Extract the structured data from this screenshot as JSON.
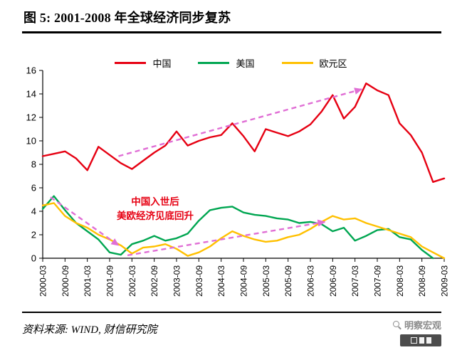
{
  "chart_data": {
    "type": "line",
    "title": "图 5:  2001-2008 年全球经济同步复苏",
    "xlabel": "",
    "ylabel": "",
    "ylim": [
      0,
      16
    ],
    "y_ticks": [
      0,
      2,
      4,
      6,
      8,
      10,
      12,
      14,
      16
    ],
    "x_tick_step": 2,
    "grid": false,
    "legend_position": "top",
    "x": [
      "2000-03",
      "2000-06",
      "2000-09",
      "2000-12",
      "2001-03",
      "2001-06",
      "2001-09",
      "2001-12",
      "2002-03",
      "2002-06",
      "2002-09",
      "2002-12",
      "2003-03",
      "2003-06",
      "2003-09",
      "2003-12",
      "2004-03",
      "2004-06",
      "2004-09",
      "2004-12",
      "2005-03",
      "2005-06",
      "2005-09",
      "2005-12",
      "2006-03",
      "2006-06",
      "2006-09",
      "2006-12",
      "2007-03",
      "2007-06",
      "2007-09",
      "2007-12",
      "2008-03",
      "2008-06",
      "2008-09",
      "2008-12",
      "2009-03"
    ],
    "series": [
      {
        "name": "中国",
        "color": "#e60012",
        "values": [
          8.7,
          8.9,
          9.1,
          8.5,
          7.5,
          9.5,
          8.8,
          8.1,
          7.6,
          8.3,
          9.0,
          9.6,
          10.8,
          9.6,
          10.0,
          10.3,
          10.5,
          11.5,
          10.4,
          9.1,
          11.0,
          10.7,
          10.4,
          10.8,
          11.4,
          12.5,
          13.9,
          11.9,
          12.9,
          14.9,
          14.3,
          13.9,
          11.5,
          10.5,
          9.0,
          6.5,
          6.8
        ]
      },
      {
        "name": "美国",
        "color": "#00a651",
        "values": [
          4.2,
          5.3,
          4.1,
          3.0,
          2.3,
          1.6,
          0.5,
          0.3,
          1.2,
          1.5,
          1.9,
          1.5,
          1.7,
          2.1,
          3.2,
          4.1,
          4.3,
          4.4,
          3.9,
          3.7,
          3.6,
          3.4,
          3.3,
          3.0,
          3.1,
          2.9,
          2.3,
          2.6,
          1.5,
          1.9,
          2.4,
          2.5,
          1.8,
          1.6,
          0.7,
          0.0,
          null
        ]
      },
      {
        "name": "欧元区",
        "color": "#ffc000",
        "values": [
          4.5,
          4.7,
          3.6,
          3.0,
          2.6,
          2.0,
          1.6,
          1.1,
          0.4,
          0.9,
          1.0,
          1.2,
          0.8,
          0.2,
          0.5,
          1.0,
          1.7,
          2.3,
          1.9,
          1.6,
          1.4,
          1.5,
          1.8,
          2.0,
          2.5,
          3.1,
          3.6,
          3.3,
          3.4,
          3.0,
          2.7,
          2.4,
          2.1,
          1.8,
          1.0,
          0.5,
          0.0
        ]
      }
    ],
    "annotation": {
      "line1": "中国入世后",
      "line2": "美欧经济见底回升",
      "color": "#e60012"
    },
    "arrow_color": "#e06fd5",
    "arrows": [
      {
        "from": [
          0.7,
          5.2
        ],
        "to": [
          6.8,
          1.1
        ]
      },
      {
        "from": [
          7.6,
          0.25
        ],
        "to": [
          25.3,
          3.1
        ]
      },
      {
        "from": [
          6.8,
          8.7
        ],
        "to": [
          28.6,
          14.4
        ]
      }
    ]
  },
  "footer": {
    "source": "资料来源: WIND, 财信研究院"
  },
  "watermark": {
    "name": "明察宏观"
  }
}
